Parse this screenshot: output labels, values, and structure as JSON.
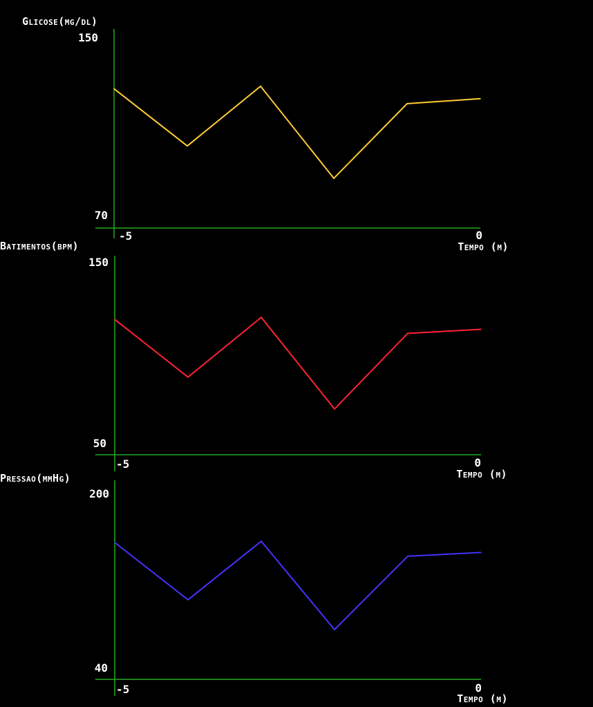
{
  "chart_data": [
    {
      "type": "line",
      "ylabel": "Glicose(mg/dl)",
      "xlabel": "Tempo (m)",
      "ylim": [
        70,
        150
      ],
      "xlim": [
        -5,
        0
      ],
      "y_ticks": [
        "150",
        "70"
      ],
      "x_ticks": [
        "-5",
        "0"
      ],
      "color": "#ffcc33",
      "series": [
        {
          "x": [
            -5,
            -4,
            -3,
            -2,
            -1,
            0
          ],
          "y": [
            126,
            103,
            127,
            90,
            120,
            122
          ]
        }
      ]
    },
    {
      "type": "line",
      "ylabel": "Batimentos(bpm)",
      "xlabel": "Tempo (m)",
      "ylim": [
        50,
        150
      ],
      "xlim": [
        -5,
        0
      ],
      "y_ticks": [
        "150",
        "50"
      ],
      "x_ticks": [
        "-5",
        "0"
      ],
      "color": "#ff2233",
      "series": [
        {
          "x": [
            -5,
            -4,
            -3,
            -2,
            -1,
            0
          ],
          "y": [
            118,
            89,
            119,
            73,
            111,
            113
          ]
        }
      ]
    },
    {
      "type": "line",
      "ylabel": "Pressao(mmHg)",
      "xlabel": "Tempo (m)",
      "ylim": [
        40,
        200
      ],
      "xlim": [
        -5,
        0
      ],
      "y_ticks": [
        "200",
        "40"
      ],
      "x_ticks": [
        "-5",
        "0"
      ],
      "color": "#4433ff",
      "series": [
        {
          "x": [
            -5,
            -4,
            -3,
            -2,
            -1,
            0
          ],
          "y": [
            150,
            104,
            151,
            80,
            139,
            142
          ]
        }
      ]
    }
  ]
}
